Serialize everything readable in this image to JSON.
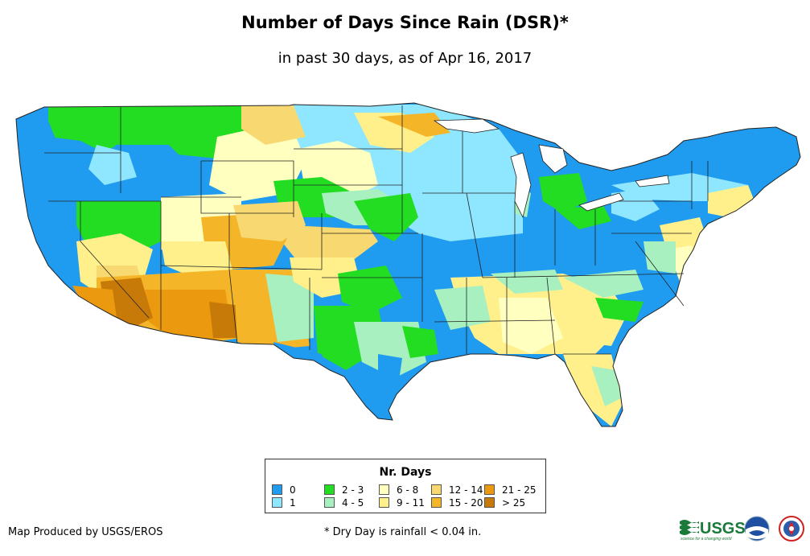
{
  "header": {
    "title": "Number of Days Since Rain (DSR)*",
    "subtitle": "in past 30 days, as of Apr 16, 2017"
  },
  "legend": {
    "title": "Nr. Days",
    "items": [
      {
        "label": "0",
        "color": "#1f9bf0"
      },
      {
        "label": "1",
        "color": "#8fe6ff"
      },
      {
        "label": "2 - 3",
        "color": "#22dd22"
      },
      {
        "label": "4 - 5",
        "color": "#a8f0c0"
      },
      {
        "label": "6 - 8",
        "color": "#ffffc0"
      },
      {
        "label": "9 - 11",
        "color": "#fff08c"
      },
      {
        "label": "12 - 14",
        "color": "#f8d870"
      },
      {
        "label": "15 - 20",
        "color": "#f5b528"
      },
      {
        "label": "21 - 25",
        "color": "#eb9a10"
      },
      {
        "label": "> 25",
        "color": "#c87a08"
      }
    ]
  },
  "footer": {
    "credit": "Map Produced by USGS/EROS",
    "note": "* Dry Day is rainfall < 0.04 in."
  },
  "logos": {
    "usgs_text": "USGS",
    "usgs_tagline": "science for a changing world"
  }
}
